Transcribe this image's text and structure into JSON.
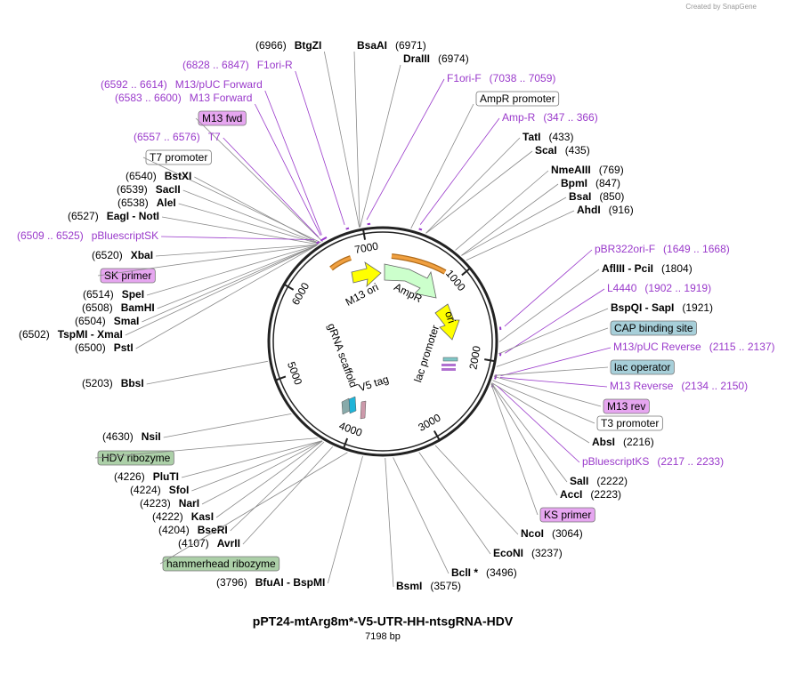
{
  "header": {
    "watermark": "Created by SnapGene",
    "title": "pPT24-mtArg8m*-V5-UTR-HH-ntsgRNA-HDV",
    "subtitle": "7198 bp"
  },
  "ring_ticks": [
    "1000",
    "2000",
    "3000",
    "4000",
    "5000",
    "6000",
    "7000"
  ],
  "inner_features": [
    "M13 ori",
    "AmpR",
    "ori",
    "lac promoter",
    "gRNA scaffold",
    "V5 tag"
  ],
  "labels": [
    {
      "name": "BtgZI",
      "position": "(6966)",
      "style": "enzyme"
    },
    {
      "name": "BsaAI",
      "position": "(6971)",
      "style": "enzyme"
    },
    {
      "name": "DraIII",
      "position": "(6974)",
      "style": "enzyme"
    },
    {
      "name": "F1ori-R",
      "position": "(6828 .. 6847)",
      "style": "primer"
    },
    {
      "name": "F1ori-F",
      "position": "(7038 .. 7059)",
      "style": "primer"
    },
    {
      "name": "M13/pUC Forward",
      "position": "(6592 .. 6614)",
      "style": "primer"
    },
    {
      "name": "AmpR promoter",
      "style": "box-white"
    },
    {
      "name": "M13 Forward",
      "position": "(6583 .. 6600)",
      "style": "primer"
    },
    {
      "name": "M13 fwd",
      "style": "box-purple"
    },
    {
      "name": "Amp-R",
      "position": "(347 .. 366)",
      "style": "primer"
    },
    {
      "name": "T7",
      "position": "(6557 .. 6576)",
      "style": "primer"
    },
    {
      "name": "TatI",
      "position": "(433)",
      "style": "enzyme"
    },
    {
      "name": "ScaI",
      "position": "(435)",
      "style": "enzyme"
    },
    {
      "name": "T7 promoter",
      "style": "box-white"
    },
    {
      "name": "NmeAIII",
      "position": "(769)",
      "style": "enzyme"
    },
    {
      "name": "BstXI",
      "position": "(6540)",
      "style": "enzyme"
    },
    {
      "name": "BpmI",
      "position": "(847)",
      "style": "enzyme"
    },
    {
      "name": "SacII",
      "position": "(6539)",
      "style": "enzyme"
    },
    {
      "name": "BsaI",
      "position": "(850)",
      "style": "enzyme"
    },
    {
      "name": "AleI",
      "position": "(6538)",
      "style": "enzyme"
    },
    {
      "name": "AhdI",
      "position": "(916)",
      "style": "enzyme"
    },
    {
      "name": "EagI - NotI",
      "position": "(6527)",
      "style": "enzyme"
    },
    {
      "name": "pBluescriptSK",
      "position": "(6509 .. 6525)",
      "style": "primer"
    },
    {
      "name": "pBR322ori-F",
      "position": "(1649 .. 1668)",
      "style": "primer"
    },
    {
      "name": "XbaI",
      "position": "(6520)",
      "style": "enzyme"
    },
    {
      "name": "AflIII - PciI",
      "position": "(1804)",
      "style": "enzyme"
    },
    {
      "name": "SK primer",
      "style": "box-purple"
    },
    {
      "name": "L4440",
      "position": "(1902 .. 1919)",
      "style": "primer"
    },
    {
      "name": "SpeI",
      "position": "(6514)",
      "style": "enzyme"
    },
    {
      "name": "BamHI",
      "position": "(6508)",
      "style": "enzyme"
    },
    {
      "name": "BspQI - SapI",
      "position": "(1921)",
      "style": "enzyme"
    },
    {
      "name": "SmaI",
      "position": "(6504)",
      "style": "enzyme"
    },
    {
      "name": "CAP binding site",
      "style": "box-teal"
    },
    {
      "name": "TspMI - XmaI",
      "position": "(6502)",
      "style": "enzyme"
    },
    {
      "name": "PstI",
      "position": "(6500)",
      "style": "enzyme"
    },
    {
      "name": "M13/pUC Reverse",
      "position": "(2115 .. 2137)",
      "style": "primer"
    },
    {
      "name": "lac operator",
      "style": "box-teal"
    },
    {
      "name": "BbsI",
      "position": "(5203)",
      "style": "enzyme"
    },
    {
      "name": "M13 Reverse",
      "position": "(2134 .. 2150)",
      "style": "primer"
    },
    {
      "name": "M13 rev",
      "style": "box-purple"
    },
    {
      "name": "T3 promoter",
      "style": "box-white"
    },
    {
      "name": "NsiI",
      "position": "(4630)",
      "style": "enzyme"
    },
    {
      "name": "AbsI",
      "position": "(2216)",
      "style": "enzyme"
    },
    {
      "name": "HDV ribozyme",
      "style": "box-green"
    },
    {
      "name": "pBluescriptKS",
      "position": "(2217 .. 2233)",
      "style": "primer"
    },
    {
      "name": "PluTI",
      "position": "(4226)",
      "style": "enzyme"
    },
    {
      "name": "SalI",
      "position": "(2222)",
      "style": "enzyme"
    },
    {
      "name": "SfoI",
      "position": "(4224)",
      "style": "enzyme"
    },
    {
      "name": "AccI",
      "position": "(2223)",
      "style": "enzyme"
    },
    {
      "name": "NarI",
      "position": "(4223)",
      "style": "enzyme"
    },
    {
      "name": "KS primer",
      "style": "box-purple"
    },
    {
      "name": "KasI",
      "position": "(4222)",
      "style": "enzyme"
    },
    {
      "name": "BseRI",
      "position": "(4204)",
      "style": "enzyme"
    },
    {
      "name": "NcoI",
      "position": "(3064)",
      "style": "enzyme"
    },
    {
      "name": "AvrII",
      "position": "(4107)",
      "style": "enzyme"
    },
    {
      "name": "EcoNI",
      "position": "(3237)",
      "style": "enzyme"
    },
    {
      "name": "hammerhead ribozyme",
      "style": "box-green"
    },
    {
      "name": "BclI *",
      "position": "(3496)",
      "style": "enzyme"
    },
    {
      "name": "BfuAI - BspMI",
      "position": "(3796)",
      "style": "enzyme"
    },
    {
      "name": "BsmI",
      "position": "(3575)",
      "style": "enzyme"
    }
  ]
}
